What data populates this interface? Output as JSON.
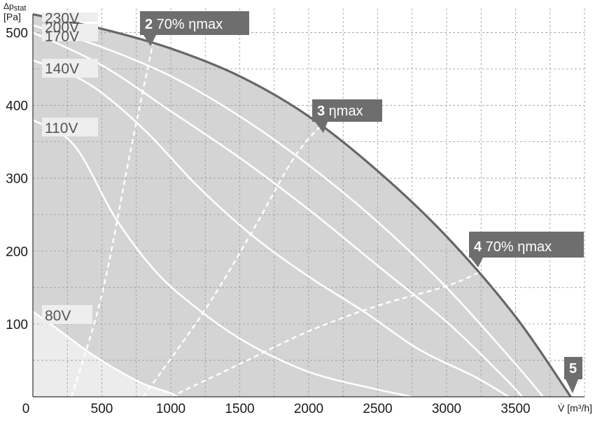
{
  "chart_data": {
    "type": "line",
    "title": "",
    "xlabel": "V̇ [m³/h]",
    "ylabel": "Δp",
    "ylabel_sub": "stat",
    "ylabel_unit": "[Pa]",
    "xlim": [
      0,
      4000
    ],
    "ylim": [
      0,
      535
    ],
    "x_ticks": [
      0,
      500,
      1000,
      1500,
      2000,
      2500,
      3000,
      3500
    ],
    "y_ticks": [
      100,
      200,
      300,
      400,
      500
    ],
    "grid": true,
    "colors": {
      "area_fill": "#d4d4d4",
      "area_light": "#ececec",
      "envelope_line": "#666666",
      "curve_line": "#ffffff",
      "callout_bg": "#6e6e6e",
      "label_bg": "#eeeeee"
    },
    "voltage_curves": [
      {
        "name": "230V",
        "points": [
          [
            0,
            525
          ],
          [
            500,
            505
          ],
          [
            1000,
            478
          ],
          [
            1500,
            440
          ],
          [
            2000,
            385
          ],
          [
            2500,
            310
          ],
          [
            3000,
            220
          ],
          [
            3500,
            110
          ],
          [
            3900,
            0
          ]
        ]
      },
      {
        "name": "200V",
        "points": [
          [
            0,
            510
          ],
          [
            500,
            480
          ],
          [
            1000,
            440
          ],
          [
            1500,
            385
          ],
          [
            2000,
            318
          ],
          [
            2500,
            240
          ],
          [
            3000,
            150
          ],
          [
            3500,
            45
          ],
          [
            3700,
            0
          ]
        ]
      },
      {
        "name": "170V",
        "points": [
          [
            0,
            500
          ],
          [
            500,
            455
          ],
          [
            1000,
            392
          ],
          [
            1500,
            328
          ],
          [
            2000,
            257
          ],
          [
            2500,
            180
          ],
          [
            3000,
            103
          ],
          [
            3400,
            30
          ],
          [
            3550,
            0
          ]
        ]
      },
      {
        "name": "140V",
        "points": [
          [
            0,
            462
          ],
          [
            400,
            430
          ],
          [
            800,
            368
          ],
          [
            1200,
            288
          ],
          [
            1600,
            220
          ],
          [
            2000,
            165
          ],
          [
            2400,
            117
          ],
          [
            2800,
            65
          ],
          [
            3200,
            28
          ],
          [
            3450,
            0
          ]
        ]
      },
      {
        "name": "110V",
        "points": [
          [
            0,
            380
          ],
          [
            300,
            345
          ],
          [
            600,
            245
          ],
          [
            900,
            170
          ],
          [
            1200,
            120
          ],
          [
            1500,
            80
          ],
          [
            1800,
            50
          ],
          [
            2100,
            28
          ],
          [
            2500,
            10
          ],
          [
            2750,
            0
          ]
        ]
      },
      {
        "name": "80V",
        "points": [
          [
            0,
            117
          ],
          [
            200,
            90
          ],
          [
            400,
            62
          ],
          [
            600,
            38
          ],
          [
            800,
            18
          ],
          [
            1000,
            5
          ],
          [
            1050,
            0
          ]
        ]
      }
    ],
    "efficiency_lines": [
      {
        "name": "2 70% ηmax",
        "points": [
          [
            280,
            0
          ],
          [
            500,
            140
          ],
          [
            700,
            330
          ],
          [
            870,
            485
          ]
        ]
      },
      {
        "name": "3 ηmax",
        "points": [
          [
            800,
            0
          ],
          [
            1250,
            120
          ],
          [
            1600,
            230
          ],
          [
            1900,
            330
          ],
          [
            2130,
            380
          ]
        ]
      },
      {
        "name": "4 70% ηmax",
        "points": [
          [
            1000,
            0
          ],
          [
            1500,
            45
          ],
          [
            2000,
            90
          ],
          [
            2500,
            125
          ],
          [
            3000,
            152
          ],
          [
            3250,
            172
          ]
        ]
      }
    ],
    "voltage_labels": [
      "230V",
      "200V",
      "170V",
      "140V",
      "110V",
      "80V"
    ],
    "callouts": [
      {
        "num": "2",
        "text": "70% ηmax"
      },
      {
        "num": "3",
        "text": "ηmax"
      },
      {
        "num": "4",
        "text": "70% ηmax"
      },
      {
        "num": "5",
        "text": ""
      }
    ]
  }
}
